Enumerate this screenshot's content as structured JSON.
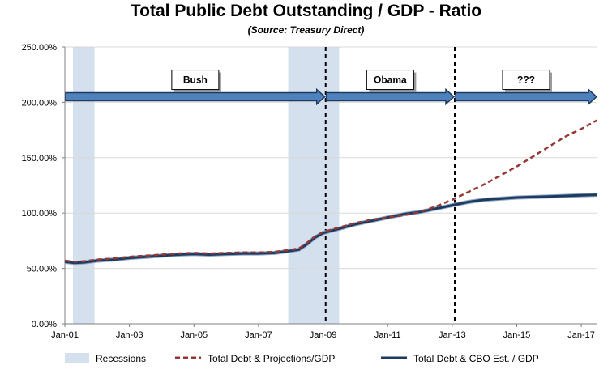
{
  "chart_data": {
    "type": "line",
    "title": "Total Public Debt Outstanding / GDP - Ratio",
    "subtitle": "(Source:  Treasury Direct)",
    "y_ticks": [
      "0.00%",
      "50.00%",
      "100.00%",
      "150.00%",
      "200.00%",
      "250.00%"
    ],
    "y_tick_values": [
      0,
      50,
      100,
      150,
      200,
      250
    ],
    "ylim": [
      0,
      250
    ],
    "x_ticks": [
      "Jan-01",
      "Jan-03",
      "Jan-05",
      "Jan-07",
      "Jan-09",
      "Jan-11",
      "Jan-13",
      "Jan-15",
      "Jan-17"
    ],
    "x_tick_values": [
      2001,
      2003,
      2005,
      2007,
      2009,
      2011,
      2013,
      2015,
      2017
    ],
    "xlim": [
      2001,
      2017.5
    ],
    "recessions": [
      [
        2001.25,
        2001.92
      ],
      [
        2007.92,
        2009.5
      ]
    ],
    "dividers": [
      2009.08,
      2013.08
    ],
    "eras": [
      {
        "label": "Bush",
        "start": 2001,
        "end": 2009.08
      },
      {
        "label": "Obama",
        "start": 2009.08,
        "end": 2013.08
      },
      {
        "label": "???",
        "start": 2013.08,
        "end": 2017.5
      }
    ],
    "era_arrow_level": 205,
    "series": [
      {
        "name": "Total Debt & CBO Est. / GDP",
        "color": "#1f3a5f",
        "style": "solid",
        "x": [
          2001.0,
          2001.3,
          2001.6,
          2002.0,
          2002.5,
          2003.0,
          2003.5,
          2004.0,
          2004.5,
          2005.0,
          2005.5,
          2006.0,
          2006.5,
          2007.0,
          2007.5,
          2007.9,
          2008.25,
          2008.5,
          2008.75,
          2009.0,
          2009.5,
          2010.0,
          2010.5,
          2011.0,
          2011.5,
          2012.0,
          2012.5,
          2013.0,
          2013.5,
          2014.0,
          2014.5,
          2015.0,
          2015.5,
          2016.0,
          2016.5,
          2017.0,
          2017.5
        ],
        "values": [
          56,
          55,
          55.5,
          57,
          58,
          59.5,
          60.5,
          61.5,
          62.5,
          63,
          62.5,
          63,
          63.5,
          63.5,
          64,
          65.5,
          67,
          72,
          78,
          82,
          86,
          90,
          93,
          96,
          99,
          101,
          104,
          107,
          110,
          112,
          113,
          114,
          114.5,
          115,
          115.5,
          116,
          116.5
        ]
      },
      {
        "name": "Total Debt & Projections/GDP",
        "color": "#953735",
        "style": "dashed",
        "x": [
          2001.0,
          2001.3,
          2001.6,
          2002.0,
          2002.5,
          2003.0,
          2003.5,
          2004.0,
          2004.5,
          2005.0,
          2005.5,
          2006.0,
          2006.5,
          2007.0,
          2007.5,
          2007.9,
          2008.25,
          2008.5,
          2008.75,
          2009.0,
          2009.5,
          2010.0,
          2010.5,
          2011.0,
          2011.5,
          2012.0,
          2012.5,
          2013.0,
          2013.5,
          2014.0,
          2014.5,
          2015.0,
          2015.5,
          2016.0,
          2016.5,
          2017.0,
          2017.5
        ],
        "values": [
          57,
          56,
          56.5,
          58,
          59,
          60.5,
          61.5,
          62.5,
          63.5,
          64,
          63.5,
          64,
          64.5,
          64.5,
          65,
          66.5,
          68,
          73,
          79,
          83,
          87,
          91,
          94,
          96,
          98,
          101,
          106,
          112,
          119,
          126,
          134,
          142,
          151,
          160,
          169,
          176,
          184
        ]
      }
    ],
    "legend": [
      {
        "label": "Recessions",
        "kind": "box"
      },
      {
        "label": "Total Debt & Projections/GDP",
        "kind": "dashed"
      },
      {
        "label": "Total Debt & CBO Est. / GDP",
        "kind": "solid"
      }
    ]
  }
}
